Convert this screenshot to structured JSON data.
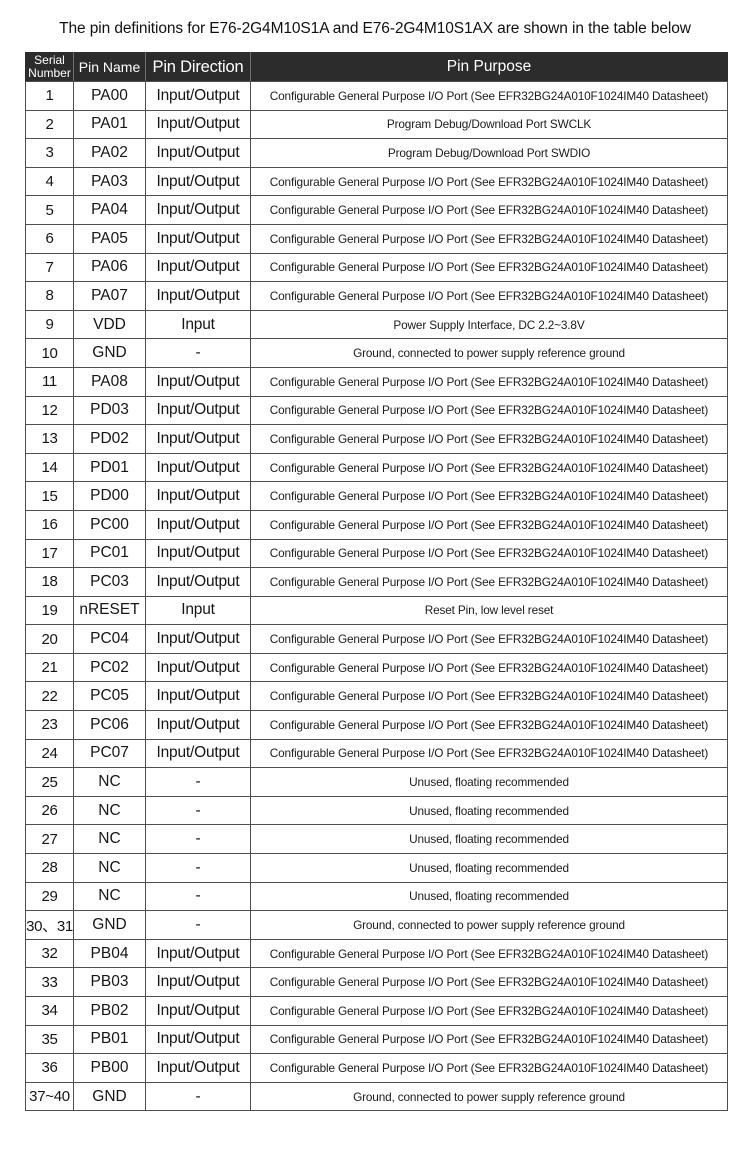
{
  "page": {
    "title": "The pin definitions for E76-2G4M10S1A and E76-2G4M10S1AX are shown in the table below"
  },
  "colors": {
    "header_bg": "#2c2c2c",
    "header_text": "#ffffff",
    "border": "#4f4f4f",
    "text": "#161616",
    "background": "#ffffff"
  },
  "table": {
    "columns": [
      "Serial Number",
      "Pin Name",
      "Pin Direction",
      "Pin Purpose"
    ],
    "rows": [
      {
        "serial": "1",
        "name": "PA00",
        "direction": "Input/Output",
        "purpose": "Configurable General Purpose I/O Port (See EFR32BG24A010F1024IM40 Datasheet)"
      },
      {
        "serial": "2",
        "name": "PA01",
        "direction": "Input/Output",
        "purpose": "Program Debug/Download Port SWCLK"
      },
      {
        "serial": "3",
        "name": "PA02",
        "direction": "Input/Output",
        "purpose": "Program Debug/Download Port SWDIO"
      },
      {
        "serial": "4",
        "name": "PA03",
        "direction": "Input/Output",
        "purpose": "Configurable General Purpose I/O Port (See EFR32BG24A010F1024IM40 Datasheet)"
      },
      {
        "serial": "5",
        "name": "PA04",
        "direction": "Input/Output",
        "purpose": "Configurable General Purpose I/O Port (See EFR32BG24A010F1024IM40 Datasheet)"
      },
      {
        "serial": "6",
        "name": "PA05",
        "direction": "Input/Output",
        "purpose": "Configurable General Purpose I/O Port (See EFR32BG24A010F1024IM40 Datasheet)"
      },
      {
        "serial": "7",
        "name": "PA06",
        "direction": "Input/Output",
        "purpose": "Configurable General Purpose I/O Port (See EFR32BG24A010F1024IM40 Datasheet)"
      },
      {
        "serial": "8",
        "name": "PA07",
        "direction": "Input/Output",
        "purpose": "Configurable General Purpose I/O Port (See EFR32BG24A010F1024IM40 Datasheet)"
      },
      {
        "serial": "9",
        "name": "VDD",
        "direction": "Input",
        "purpose": "Power Supply Interface, DC 2.2~3.8V"
      },
      {
        "serial": "10",
        "name": "GND",
        "direction": "-",
        "purpose": "Ground, connected to power supply reference ground"
      },
      {
        "serial": "11",
        "name": "PA08",
        "direction": "Input/Output",
        "purpose": "Configurable General Purpose I/O Port (See EFR32BG24A010F1024IM40 Datasheet)"
      },
      {
        "serial": "12",
        "name": "PD03",
        "direction": "Input/Output",
        "purpose": "Configurable General Purpose I/O Port (See EFR32BG24A010F1024IM40 Datasheet)"
      },
      {
        "serial": "13",
        "name": "PD02",
        "direction": "Input/Output",
        "purpose": "Configurable General Purpose I/O Port (See EFR32BG24A010F1024IM40 Datasheet)"
      },
      {
        "serial": "14",
        "name": "PD01",
        "direction": "Input/Output",
        "purpose": "Configurable General Purpose I/O Port (See EFR32BG24A010F1024IM40 Datasheet)"
      },
      {
        "serial": "15",
        "name": "PD00",
        "direction": "Input/Output",
        "purpose": "Configurable General Purpose I/O Port (See EFR32BG24A010F1024IM40 Datasheet)"
      },
      {
        "serial": "16",
        "name": "PC00",
        "direction": "Input/Output",
        "purpose": "Configurable General Purpose I/O Port (See EFR32BG24A010F1024IM40 Datasheet)"
      },
      {
        "serial": "17",
        "name": "PC01",
        "direction": "Input/Output",
        "purpose": "Configurable General Purpose I/O Port (See EFR32BG24A010F1024IM40 Datasheet)"
      },
      {
        "serial": "18",
        "name": "PC03",
        "direction": "Input/Output",
        "purpose": "Configurable General Purpose I/O Port (See EFR32BG24A010F1024IM40 Datasheet)"
      },
      {
        "serial": "19",
        "name": "nRESET",
        "direction": "Input",
        "purpose": "Reset Pin, low level reset"
      },
      {
        "serial": "20",
        "name": "PC04",
        "direction": "Input/Output",
        "purpose": "Configurable General Purpose I/O Port (See EFR32BG24A010F1024IM40 Datasheet)"
      },
      {
        "serial": "21",
        "name": "PC02",
        "direction": "Input/Output",
        "purpose": "Configurable General Purpose I/O Port (See EFR32BG24A010F1024IM40 Datasheet)"
      },
      {
        "serial": "22",
        "name": "PC05",
        "direction": "Input/Output",
        "purpose": "Configurable General Purpose I/O Port (See EFR32BG24A010F1024IM40 Datasheet)"
      },
      {
        "serial": "23",
        "name": "PC06",
        "direction": "Input/Output",
        "purpose": "Configurable General Purpose I/O Port (See EFR32BG24A010F1024IM40 Datasheet)"
      },
      {
        "serial": "24",
        "name": "PC07",
        "direction": "Input/Output",
        "purpose": "Configurable General Purpose I/O Port (See EFR32BG24A010F1024IM40 Datasheet)"
      },
      {
        "serial": "25",
        "name": "NC",
        "direction": "-",
        "purpose": "Unused, floating recommended"
      },
      {
        "serial": "26",
        "name": "NC",
        "direction": "-",
        "purpose": "Unused, floating recommended"
      },
      {
        "serial": "27",
        "name": "NC",
        "direction": "-",
        "purpose": "Unused, floating recommended"
      },
      {
        "serial": "28",
        "name": "NC",
        "direction": "-",
        "purpose": "Unused, floating recommended"
      },
      {
        "serial": "29",
        "name": "NC",
        "direction": "-",
        "purpose": "Unused, floating recommended"
      },
      {
        "serial": "30、31",
        "name": "GND",
        "direction": "-",
        "purpose": "Ground, connected to power supply reference ground"
      },
      {
        "serial": "32",
        "name": "PB04",
        "direction": "Input/Output",
        "purpose": "Configurable General Purpose I/O Port (See EFR32BG24A010F1024IM40 Datasheet)"
      },
      {
        "serial": "33",
        "name": "PB03",
        "direction": "Input/Output",
        "purpose": "Configurable General Purpose I/O Port (See EFR32BG24A010F1024IM40 Datasheet)"
      },
      {
        "serial": "34",
        "name": "PB02",
        "direction": "Input/Output",
        "purpose": "Configurable General Purpose I/O Port (See EFR32BG24A010F1024IM40 Datasheet)"
      },
      {
        "serial": "35",
        "name": "PB01",
        "direction": "Input/Output",
        "purpose": "Configurable General Purpose I/O Port (See EFR32BG24A010F1024IM40 Datasheet)"
      },
      {
        "serial": "36",
        "name": "PB00",
        "direction": "Input/Output",
        "purpose": "Configurable General Purpose I/O Port (See EFR32BG24A010F1024IM40 Datasheet)"
      },
      {
        "serial": "37~40",
        "name": "GND",
        "direction": "-",
        "purpose": "Ground, connected to power supply reference ground"
      }
    ]
  }
}
